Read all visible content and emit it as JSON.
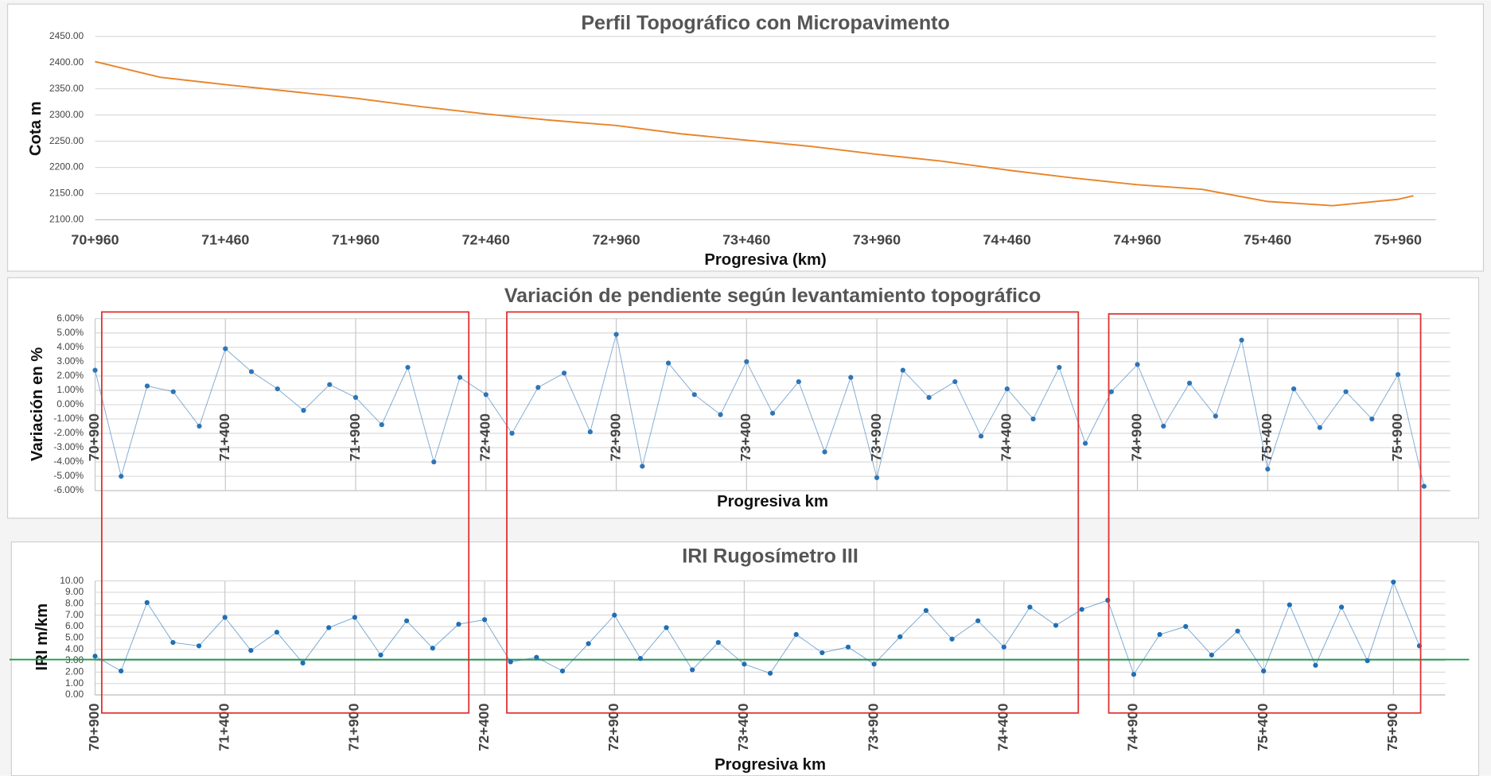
{
  "chart_data": [
    {
      "type": "line",
      "title": "Perfil Topográfico con Micropavimento",
      "x_label": "Progresiva (km)",
      "y_label": "Cota m",
      "x": [
        70960,
        71210,
        71460,
        71710,
        71960,
        72210,
        72460,
        72710,
        72960,
        73210,
        73460,
        73710,
        73960,
        74210,
        74460,
        74710,
        74960,
        75210,
        75460,
        75710,
        75960,
        76020
      ],
      "series": [
        {
          "color": "#e8852a",
          "values": [
            2402,
            2372,
            2358,
            2345,
            2332,
            2316,
            2302,
            2290,
            2280,
            2264,
            2252,
            2240,
            2225,
            2212,
            2195,
            2180,
            2167,
            2158,
            2135,
            2127,
            2139,
            2146
          ]
        }
      ],
      "xlim": [
        70960,
        76106
      ],
      "xticks": [
        {
          "value": 70960,
          "label": "70+960"
        },
        {
          "value": 71460,
          "label": "71+460"
        },
        {
          "value": 71960,
          "label": "71+960"
        },
        {
          "value": 72460,
          "label": "72+460"
        },
        {
          "value": 72960,
          "label": "72+960"
        },
        {
          "value": 73460,
          "label": "73+460"
        },
        {
          "value": 73960,
          "label": "73+960"
        },
        {
          "value": 74460,
          "label": "74+460"
        },
        {
          "value": 74960,
          "label": "74+960"
        },
        {
          "value": 75460,
          "label": "75+460"
        },
        {
          "value": 75960,
          "label": "75+960"
        }
      ],
      "ylim": [
        2100,
        2450
      ],
      "yticks": [
        {
          "value": 2100,
          "label": "2100.00"
        },
        {
          "value": 2150,
          "label": "2150.00"
        },
        {
          "value": 2200,
          "label": "2200.00"
        },
        {
          "value": 2250,
          "label": "2250.00"
        },
        {
          "value": 2300,
          "label": "2300.00"
        },
        {
          "value": 2350,
          "label": "2350.00"
        },
        {
          "value": 2400,
          "label": "2400.00"
        },
        {
          "value": 2450,
          "label": "2450.00"
        }
      ],
      "grid": "y",
      "markers": false,
      "rotate_xticks": false
    },
    {
      "type": "line",
      "title": "Variación de pendiente según levantamiento topográfico",
      "x_label": "Progresiva km",
      "y_label": "Variación en %",
      "x": [
        70900,
        71000,
        71100,
        71200,
        71300,
        71400,
        71500,
        71600,
        71700,
        71800,
        71900,
        72000,
        72100,
        72200,
        72300,
        72400,
        72500,
        72600,
        72700,
        72800,
        72900,
        73000,
        73100,
        73200,
        73300,
        73400,
        73500,
        73600,
        73700,
        73800,
        73900,
        74000,
        74100,
        74200,
        74300,
        74400,
        74500,
        74600,
        74700,
        74800,
        74900,
        75000,
        75100,
        75200,
        75300,
        75400,
        75500,
        75600,
        75700,
        75800,
        75900,
        76000
      ],
      "series": [
        {
          "color": "#2e75b6",
          "values": [
            2.4,
            -5.0,
            1.3,
            0.9,
            -1.5,
            3.9,
            2.3,
            1.1,
            -0.4,
            1.4,
            0.5,
            -1.4,
            2.6,
            -4.0,
            1.9,
            0.7,
            -2.0,
            1.2,
            2.2,
            -1.9,
            4.9,
            -4.3,
            2.9,
            0.7,
            -0.7,
            3.0,
            -0.6,
            1.6,
            -3.3,
            1.9,
            -5.1,
            2.4,
            0.5,
            1.6,
            -2.2,
            1.1,
            -1.0,
            2.6,
            -2.7,
            0.9,
            2.8,
            -1.5,
            1.5,
            -0.8,
            4.5,
            -4.5,
            1.1,
            -1.6,
            0.9,
            -1.0,
            2.1,
            -5.7
          ]
        }
      ],
      "xlim": [
        70900,
        76100
      ],
      "xticks": [
        {
          "value": 70900,
          "label": "70+900"
        },
        {
          "value": 71400,
          "label": "71+400"
        },
        {
          "value": 71900,
          "label": "71+900"
        },
        {
          "value": 72400,
          "label": "72+400"
        },
        {
          "value": 72900,
          "label": "72+900"
        },
        {
          "value": 73400,
          "label": "73+400"
        },
        {
          "value": 73900,
          "label": "73+900"
        },
        {
          "value": 74400,
          "label": "74+400"
        },
        {
          "value": 74900,
          "label": "74+900"
        },
        {
          "value": 75400,
          "label": "75+400"
        },
        {
          "value": 75900,
          "label": "75+900"
        }
      ],
      "ylim": [
        -6,
        6
      ],
      "yticks": [
        {
          "value": -6,
          "label": "-6.00%"
        },
        {
          "value": -5,
          "label": "-5.00%"
        },
        {
          "value": -4,
          "label": "-4.00%"
        },
        {
          "value": -3,
          "label": "-3.00%"
        },
        {
          "value": -2,
          "label": "-2.00%"
        },
        {
          "value": -1,
          "label": "-1.00%"
        },
        {
          "value": 0,
          "label": "0.00%"
        },
        {
          "value": 1,
          "label": "1.00%"
        },
        {
          "value": 2,
          "label": "2.00%"
        },
        {
          "value": 3,
          "label": "3.00%"
        },
        {
          "value": 4,
          "label": "4.00%"
        },
        {
          "value": 5,
          "label": "5.00%"
        },
        {
          "value": 6,
          "label": "6.00%"
        }
      ],
      "grid": "both",
      "markers": true,
      "rotate_xticks": true
    },
    {
      "type": "line",
      "title": "IRI Rugosímetro III",
      "x_label": "Progresiva  km",
      "y_label": "IRI m/km",
      "x": [
        70900,
        71000,
        71100,
        71200,
        71300,
        71400,
        71500,
        71600,
        71700,
        71800,
        71900,
        72000,
        72100,
        72200,
        72300,
        72400,
        72500,
        72600,
        72700,
        72800,
        72900,
        73000,
        73100,
        73200,
        73300,
        73400,
        73500,
        73600,
        73700,
        73800,
        73900,
        74000,
        74100,
        74200,
        74300,
        74400,
        74500,
        74600,
        74700,
        74800,
        74900,
        75000,
        75100,
        75200,
        75300,
        75400,
        75500,
        75600,
        75700,
        75800,
        75900,
        76000
      ],
      "series": [
        {
          "color": "#1f6fb5",
          "values": [
            3.4,
            2.1,
            8.1,
            4.6,
            4.3,
            6.8,
            3.9,
            5.5,
            2.8,
            5.9,
            6.8,
            3.5,
            6.5,
            4.1,
            6.2,
            6.6,
            2.9,
            3.3,
            2.1,
            4.5,
            7.0,
            3.2,
            5.9,
            2.2,
            4.6,
            2.7,
            1.9,
            5.3,
            3.7,
            4.2,
            2.7,
            5.1,
            7.4,
            4.9,
            6.5,
            4.2,
            7.7,
            6.1,
            7.5,
            8.3,
            1.8,
            5.3,
            6.0,
            3.5,
            5.6,
            2.1,
            7.9,
            2.6,
            7.7,
            3.0,
            9.9,
            4.3
          ]
        }
      ],
      "reference_line": {
        "value": 3.1,
        "color": "#1a9c4a"
      },
      "xlim": [
        70900,
        76100
      ],
      "xticks": [
        {
          "value": 70900,
          "label": "70+900"
        },
        {
          "value": 71400,
          "label": "71+400"
        },
        {
          "value": 71900,
          "label": "71+900"
        },
        {
          "value": 72400,
          "label": "72+400"
        },
        {
          "value": 72900,
          "label": "72+900"
        },
        {
          "value": 73400,
          "label": "73+400"
        },
        {
          "value": 73900,
          "label": "73+900"
        },
        {
          "value": 74400,
          "label": "74+400"
        },
        {
          "value": 74900,
          "label": "74+900"
        },
        {
          "value": 75400,
          "label": "75+400"
        },
        {
          "value": 75900,
          "label": "75+900"
        }
      ],
      "ylim": [
        0,
        10
      ],
      "yticks": [
        {
          "value": 0,
          "label": "0.00"
        },
        {
          "value": 1,
          "label": "1.00"
        },
        {
          "value": 2,
          "label": "2.00"
        },
        {
          "value": 3,
          "label": "3.00"
        },
        {
          "value": 4,
          "label": "4.00"
        },
        {
          "value": 5,
          "label": "5.00"
        },
        {
          "value": 6,
          "label": "6.00"
        },
        {
          "value": 7,
          "label": "7.00"
        },
        {
          "value": 8,
          "label": "8.00"
        },
        {
          "value": 9,
          "label": "9.00"
        },
        {
          "value": 10,
          "label": "10.00"
        }
      ],
      "grid": "both",
      "markers": true,
      "rotate_xticks": true
    }
  ]
}
